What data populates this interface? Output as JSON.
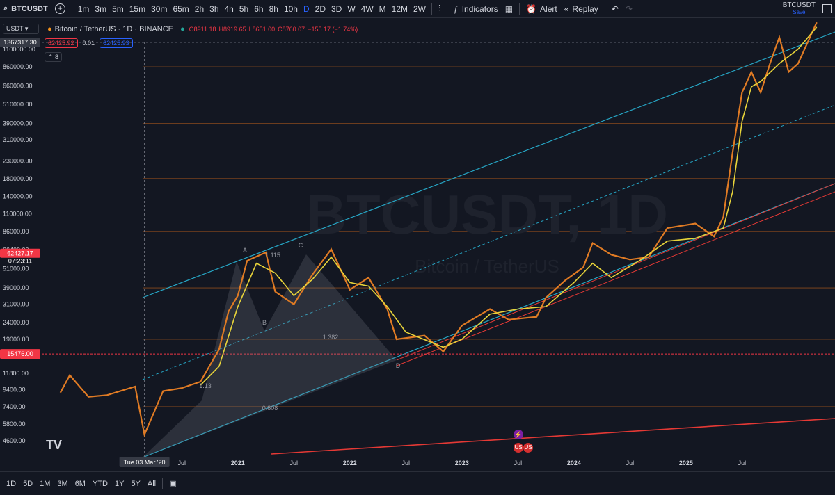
{
  "toolbar": {
    "symbol": "BTCUSDT",
    "timeframes": [
      "1m",
      "3m",
      "5m",
      "15m",
      "30m",
      "65m",
      "2h",
      "3h",
      "4h",
      "5h",
      "6h",
      "8h",
      "10h",
      "D",
      "2D",
      "3D",
      "W",
      "4W",
      "M",
      "12M",
      "2W"
    ],
    "active_timeframe": "D",
    "indicators_label": "Indicators",
    "alert_label": "Alert",
    "replay_label": "Replay",
    "layout_name": "BTCUSDT",
    "save_label": "Save"
  },
  "legend": {
    "quote": "USDT",
    "title": "Bitcoin / TetherUS · 1D · BINANCE",
    "open": "O8911.18",
    "high": "H8919.65",
    "low": "L8651.00",
    "close": "C8760.07",
    "change": "−155.17 (−1.74%)",
    "sell": "62425.92",
    "spread": "0.01",
    "buy": "62425.93",
    "indicator_count": "8"
  },
  "watermark": {
    "symbol": "BTCUSDT, 1D",
    "name": "Bitcoin / TetherUS"
  },
  "bottom": {
    "ranges": [
      "1D",
      "5D",
      "1M",
      "3M",
      "6M",
      "YTD",
      "1Y",
      "5Y",
      "All"
    ]
  },
  "chart_data": {
    "type": "line",
    "scale": "log",
    "symbol": "BTCUSDT",
    "interval": "1D",
    "y_ticks": [
      "1100000.00",
      "860000.00",
      "660000.00",
      "510000.00",
      "390000.00",
      "310000.00",
      "230000.00",
      "180000.00",
      "140000.00",
      "110000.00",
      "86000.00",
      "66400.00",
      "51000.00",
      "39000.00",
      "31000.00",
      "24000.00",
      "19000.00",
      "11800.00",
      "9400.00",
      "7400.00",
      "5800.00",
      "4600.00"
    ],
    "x_ticks": [
      "Jul",
      "2021",
      "Jul",
      "2022",
      "Jul",
      "2023",
      "Jul",
      "2024",
      "Jul",
      "2025",
      "Jul"
    ],
    "crosshair_date": "Tue 03 Mar '20",
    "crosshair_price": "1367317.30",
    "current_price": "62427.17",
    "countdown": "07:23:11",
    "level_price": "15476.00",
    "harmonic_points": [
      "A",
      "B",
      "C",
      "D"
    ],
    "fib_labels": [
      "1.115",
      "1.382",
      "0.808",
      "1.13"
    ],
    "ylim": [
      3600,
      1700000
    ],
    "series": [
      {
        "name": "price",
        "color": "#e07b24",
        "points": [
          [
            "2019-06",
            9000
          ],
          [
            "2019-07",
            11500
          ],
          [
            "2019-09",
            8500
          ],
          [
            "2019-11",
            8700
          ],
          [
            "2020-02",
            9800
          ],
          [
            "2020-03",
            5000
          ],
          [
            "2020-05",
            9200
          ],
          [
            "2020-07",
            9600
          ],
          [
            "2020-09",
            10500
          ],
          [
            "2020-11",
            16500
          ],
          [
            "2020-12",
            28000
          ],
          [
            "2021-01",
            35000
          ],
          [
            "2021-02",
            57000
          ],
          [
            "2021-04",
            64000
          ],
          [
            "2021-05",
            37000
          ],
          [
            "2021-07",
            31000
          ],
          [
            "2021-09",
            47000
          ],
          [
            "2021-11",
            67000
          ],
          [
            "2022-01",
            38000
          ],
          [
            "2022-03",
            45000
          ],
          [
            "2022-05",
            29000
          ],
          [
            "2022-06",
            19000
          ],
          [
            "2022-09",
            20000
          ],
          [
            "2022-11",
            16000
          ],
          [
            "2023-01",
            23000
          ],
          [
            "2023-04",
            29000
          ],
          [
            "2023-06",
            25000
          ],
          [
            "2023-09",
            26000
          ],
          [
            "2023-10",
            34000
          ],
          [
            "2023-12",
            43000
          ],
          [
            "2024-02",
            52000
          ],
          [
            "2024-03",
            73000
          ],
          [
            "2024-05",
            62000
          ],
          [
            "2024-07",
            58000
          ],
          [
            "2024-09",
            60000
          ],
          [
            "2024-11",
            90000
          ],
          [
            "2025-02",
            96000
          ],
          [
            "2025-04",
            80000
          ],
          [
            "2025-05",
            105000
          ],
          [
            "2025-06",
            260000
          ],
          [
            "2025-07",
            600000
          ],
          [
            "2025-08",
            800000
          ],
          [
            "2025-09",
            600000
          ],
          [
            "2025-10",
            900000
          ],
          [
            "2025-11",
            1300000
          ],
          [
            "2025-12",
            800000
          ],
          [
            "2026-01",
            900000
          ],
          [
            "2026-03",
            1600000
          ]
        ]
      },
      {
        "name": "average",
        "color": "#e8d43a",
        "points": [
          [
            "2020-09",
            10000
          ],
          [
            "2020-11",
            13000
          ],
          [
            "2021-01",
            30000
          ],
          [
            "2021-03",
            55000
          ],
          [
            "2021-05",
            48000
          ],
          [
            "2021-07",
            35000
          ],
          [
            "2021-09",
            44000
          ],
          [
            "2021-11",
            60000
          ],
          [
            "2022-01",
            42000
          ],
          [
            "2022-03",
            40000
          ],
          [
            "2022-05",
            30000
          ],
          [
            "2022-07",
            21000
          ],
          [
            "2022-11",
            17000
          ],
          [
            "2023-01",
            19000
          ],
          [
            "2023-04",
            27000
          ],
          [
            "2023-07",
            29000
          ],
          [
            "2023-10",
            30000
          ],
          [
            "2024-01",
            42000
          ],
          [
            "2024-03",
            55000
          ],
          [
            "2024-05",
            45000
          ],
          [
            "2024-08",
            57000
          ],
          [
            "2024-11",
            75000
          ],
          [
            "2025-02",
            78000
          ],
          [
            "2025-05",
            90000
          ],
          [
            "2025-06",
            150000
          ],
          [
            "2025-07",
            400000
          ],
          [
            "2025-08",
            650000
          ],
          [
            "2025-09",
            700000
          ],
          [
            "2025-11",
            900000
          ],
          [
            "2026-01",
            1100000
          ],
          [
            "2026-03",
            1500000
          ]
        ]
      }
    ]
  }
}
